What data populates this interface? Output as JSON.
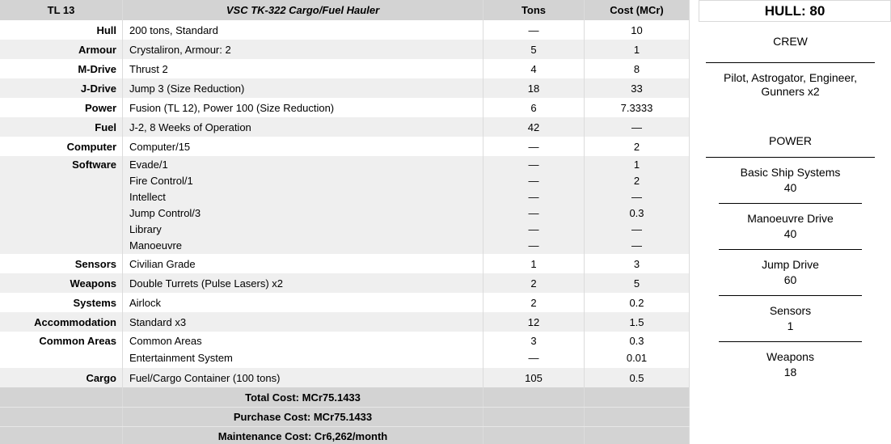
{
  "table": {
    "header": {
      "tl": "TL 13",
      "ship_name": "VSC TK-322 Cargo/Fuel Hauler",
      "tons_label": "Tons",
      "cost_label": "Cost (MCr)"
    },
    "rows": [
      {
        "label": "Hull",
        "desc": [
          "200 tons, Standard"
        ],
        "tons": [
          "—"
        ],
        "cost": [
          "10"
        ]
      },
      {
        "label": "Armour",
        "desc": [
          "Crystaliron, Armour: 2"
        ],
        "tons": [
          "5"
        ],
        "cost": [
          "1"
        ]
      },
      {
        "label": "M-Drive",
        "desc": [
          "Thrust 2"
        ],
        "tons": [
          "4"
        ],
        "cost": [
          "8"
        ]
      },
      {
        "label": "J-Drive",
        "desc": [
          "Jump 3 (Size Reduction)"
        ],
        "tons": [
          "18"
        ],
        "cost": [
          "33"
        ]
      },
      {
        "label": "Power",
        "desc": [
          "Fusion (TL 12), Power 100 (Size Reduction)"
        ],
        "tons": [
          "6"
        ],
        "cost": [
          "7.3333"
        ]
      },
      {
        "label": "Fuel",
        "desc": [
          "J-2, 8 Weeks of Operation"
        ],
        "tons": [
          "42"
        ],
        "cost": [
          "—"
        ]
      },
      {
        "label": "Computer",
        "desc": [
          "Computer/15"
        ],
        "tons": [
          "—"
        ],
        "cost": [
          "2"
        ]
      },
      {
        "label": "Software",
        "desc": [
          "Evade/1",
          "Fire Control/1",
          "Intellect",
          "Jump Control/3",
          "Library",
          "Manoeuvre"
        ],
        "tons": [
          "—",
          "—",
          "—",
          "—",
          "—",
          "—"
        ],
        "cost": [
          "1",
          "2",
          "—",
          "0.3",
          "—",
          "—"
        ]
      },
      {
        "label": "Sensors",
        "desc": [
          "Civilian Grade"
        ],
        "tons": [
          "1"
        ],
        "cost": [
          "3"
        ]
      },
      {
        "label": "Weapons",
        "desc": [
          "Double Turrets (Pulse Lasers) x2"
        ],
        "tons": [
          "2"
        ],
        "cost": [
          "5"
        ]
      },
      {
        "label": "Systems",
        "desc": [
          "Airlock"
        ],
        "tons": [
          "2"
        ],
        "cost": [
          "0.2"
        ]
      },
      {
        "label": "Accommodation",
        "desc": [
          "Standard x3"
        ],
        "tons": [
          "12"
        ],
        "cost": [
          "1.5"
        ]
      },
      {
        "label": "Common Areas",
        "desc": [
          "Common Areas",
          "Entertainment System"
        ],
        "tons": [
          "3",
          "—"
        ],
        "cost": [
          "0.3",
          "0.01"
        ]
      },
      {
        "label": "Cargo",
        "desc": [
          "Fuel/Cargo Container (100 tons)"
        ],
        "tons": [
          "105"
        ],
        "cost": [
          "0.5"
        ]
      }
    ],
    "summary": [
      "Total Cost: MCr75.1433",
      "Purchase Cost: MCr75.1433",
      "Maintenance Cost: Cr6,262/month"
    ]
  },
  "panel": {
    "hull": "HULL: 80",
    "crew_title": "CREW",
    "crew_lines": [
      "Pilot, Astrogator, Engineer,",
      "Gunners x2"
    ],
    "power_title": "POWER",
    "power_items": [
      {
        "name": "Basic Ship Systems",
        "value": "40"
      },
      {
        "name": "Manoeuvre Drive",
        "value": "40"
      },
      {
        "name": "Jump Drive",
        "value": "60"
      },
      {
        "name": "Sensors",
        "value": "1"
      },
      {
        "name": "Weapons",
        "value": "18"
      }
    ]
  },
  "colors": {
    "header_bg": "#d3d3d3",
    "stripe_bg": "#efefef",
    "gridline": "#dcdcdc",
    "divider": "#000000"
  }
}
